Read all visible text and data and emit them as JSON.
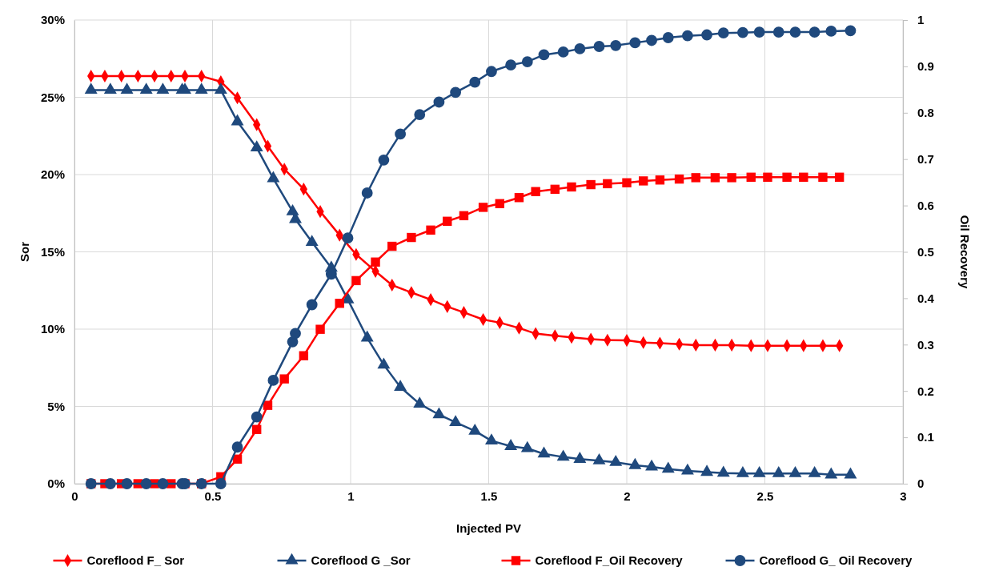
{
  "chart_data": {
    "type": "line",
    "xlabel": "Injected PV",
    "ylabel": "Sor",
    "y2label": "Oil Recovery",
    "xlim": [
      0,
      3
    ],
    "xticks": [
      0,
      0.5,
      1,
      1.5,
      2,
      2.5,
      3
    ],
    "ylim": [
      0,
      30
    ],
    "yticks": [
      {
        "value": 0,
        "label": "0%"
      },
      {
        "value": 5,
        "label": "5%"
      },
      {
        "value": 10,
        "label": "10%"
      },
      {
        "value": 15,
        "label": "15%"
      },
      {
        "value": 20,
        "label": "20%"
      },
      {
        "value": 25,
        "label": "25%"
      },
      {
        "value": 30,
        "label": "30%"
      }
    ],
    "y2lim": [
      0,
      1
    ],
    "y2ticks": [
      0,
      0.1,
      0.2,
      0.3,
      0.4,
      0.5,
      0.6,
      0.7,
      0.8,
      0.9,
      1
    ],
    "grid": true,
    "legend": "bottom",
    "line_style": "solid",
    "series": [
      {
        "name": "Coreflood F_ Sor",
        "color": "#ff0000",
        "marker": "diamond",
        "x": [
          0.06,
          0.11,
          0.17,
          0.23,
          0.29,
          0.35,
          0.4,
          0.46,
          0.53,
          0.59,
          0.66,
          0.7,
          0.76,
          0.83,
          0.89,
          0.96,
          1.02,
          1.09,
          1.15,
          1.22,
          1.29,
          1.35,
          1.41,
          1.48,
          1.54,
          1.61,
          1.67,
          1.74,
          1.8,
          1.87,
          1.93,
          2,
          2.06,
          2.12,
          2.19,
          2.25,
          2.32,
          2.38,
          2.45,
          2.51,
          2.58,
          2.64,
          2.71,
          2.77
        ],
        "values": [
          26.37,
          26.37,
          26.37,
          26.37,
          26.37,
          26.37,
          26.37,
          26.37,
          26.01,
          24.96,
          23.23,
          21.84,
          20.35,
          19.06,
          17.61,
          16.08,
          14.83,
          13.74,
          12.85,
          12.37,
          11.91,
          11.46,
          11.08,
          10.62,
          10.42,
          10.07,
          9.71,
          9.57,
          9.47,
          9.35,
          9.29,
          9.27,
          9.13,
          9.09,
          9.03,
          8.97,
          8.97,
          8.97,
          8.93,
          8.93,
          8.93,
          8.93,
          8.93,
          8.93
        ]
      },
      {
        "name": "Coreflood G _Sor",
        "color": "#1f497d",
        "marker": "triangle",
        "x": [
          0.06,
          0.13,
          0.19,
          0.26,
          0.32,
          0.39,
          0.4,
          0.46,
          0.53,
          0.59,
          0.66,
          0.72,
          0.79,
          0.8,
          0.86,
          0.93,
          0.99,
          1.06,
          1.12,
          1.18,
          1.25,
          1.32,
          1.38,
          1.45,
          1.51,
          1.58,
          1.64,
          1.7,
          1.77,
          1.83,
          1.9,
          1.96,
          2.03,
          2.09,
          2.15,
          2.22,
          2.29,
          2.35,
          2.42,
          2.48,
          2.55,
          2.61,
          2.68,
          2.74,
          2.81
        ],
        "values": [
          25.47,
          25.47,
          25.47,
          25.47,
          25.47,
          25.47,
          25.47,
          25.47,
          25.47,
          23.43,
          21.74,
          19.75,
          17.61,
          17.11,
          15.63,
          13.96,
          11.91,
          9.44,
          7.69,
          6.25,
          5.16,
          4.47,
          3.97,
          3.41,
          2.78,
          2.42,
          2.28,
          1.93,
          1.73,
          1.59,
          1.49,
          1.39,
          1.19,
          1.09,
          0.95,
          0.83,
          0.75,
          0.69,
          0.66,
          0.66,
          0.66,
          0.66,
          0.66,
          0.58,
          0.58
        ]
      },
      {
        "name": "Coreflood F_Oil Recovery",
        "color": "#ff0000",
        "marker": "square",
        "axis": "y2",
        "x": [
          0.06,
          0.11,
          0.17,
          0.23,
          0.29,
          0.35,
          0.4,
          0.46,
          0.53,
          0.59,
          0.66,
          0.7,
          0.76,
          0.83,
          0.89,
          0.96,
          1.02,
          1.09,
          1.15,
          1.22,
          1.29,
          1.35,
          1.41,
          1.48,
          1.54,
          1.61,
          1.67,
          1.74,
          1.8,
          1.87,
          1.93,
          2,
          2.06,
          2.12,
          2.19,
          2.25,
          2.32,
          2.38,
          2.45,
          2.51,
          2.58,
          2.64,
          2.71,
          2.77
        ],
        "values": [
          0,
          0,
          0,
          0,
          0,
          0,
          0,
          0,
          0.015,
          0.053,
          0.117,
          0.169,
          0.226,
          0.276,
          0.333,
          0.389,
          0.438,
          0.478,
          0.512,
          0.531,
          0.547,
          0.566,
          0.578,
          0.596,
          0.604,
          0.617,
          0.63,
          0.635,
          0.64,
          0.645,
          0.647,
          0.649,
          0.653,
          0.655,
          0.657,
          0.66,
          0.66,
          0.66,
          0.661,
          0.661,
          0.661,
          0.661,
          0.661,
          0.661
        ]
      },
      {
        "name": "Coreflood G_ Oil Recovery",
        "color": "#1f497d",
        "marker": "circle",
        "axis": "y2",
        "x": [
          0.06,
          0.13,
          0.19,
          0.26,
          0.32,
          0.39,
          0.4,
          0.46,
          0.53,
          0.59,
          0.66,
          0.72,
          0.79,
          0.8,
          0.86,
          0.93,
          0.99,
          1.06,
          1.12,
          1.18,
          1.25,
          1.32,
          1.38,
          1.45,
          1.51,
          1.58,
          1.64,
          1.7,
          1.77,
          1.83,
          1.9,
          1.96,
          2.03,
          2.09,
          2.15,
          2.22,
          2.29,
          2.35,
          2.42,
          2.48,
          2.55,
          2.61,
          2.68,
          2.74,
          2.81
        ],
        "values": [
          0,
          0,
          0,
          0,
          0,
          0,
          0,
          0,
          0,
          0.079,
          0.144,
          0.223,
          0.306,
          0.324,
          0.386,
          0.452,
          0.53,
          0.627,
          0.698,
          0.754,
          0.796,
          0.823,
          0.844,
          0.866,
          0.889,
          0.903,
          0.91,
          0.925,
          0.931,
          0.938,
          0.943,
          0.945,
          0.951,
          0.956,
          0.962,
          0.966,
          0.968,
          0.972,
          0.973,
          0.974,
          0.974,
          0.974,
          0.974,
          0.976,
          0.977
        ]
      }
    ]
  }
}
